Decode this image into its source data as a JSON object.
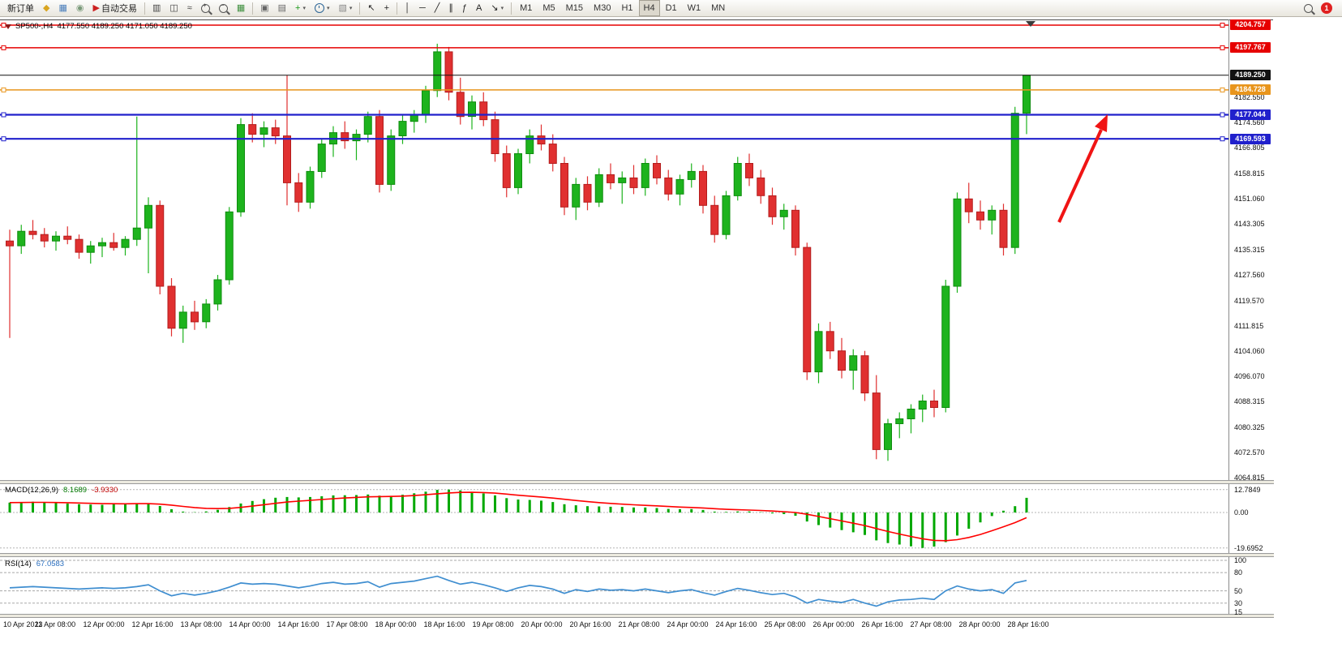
{
  "toolbar": {
    "items": [
      {
        "name": "new-order-button",
        "type": "text",
        "label": "新订单"
      },
      {
        "name": "metaeditor-button",
        "type": "icon",
        "icon": "diamond-icon",
        "glyph": "◆",
        "color": "#d9a520"
      },
      {
        "name": "market-watch-button",
        "type": "icon",
        "icon": "window-grid-icon",
        "glyph": "▦",
        "color": "#4a7ebb"
      },
      {
        "name": "data-window-button",
        "type": "icon",
        "icon": "circle-icon",
        "glyph": "◉",
        "color": "#7a9a7a"
      },
      {
        "name": "autotrading-button",
        "type": "icon-text",
        "icon": "play-icon",
        "glyph": "▶",
        "color": "#cc2020",
        "label": "自动交易"
      },
      {
        "type": "sep"
      },
      {
        "name": "chart-bars-button",
        "type": "icon",
        "icon": "bar-chart-icon",
        "glyph": "▥",
        "color": "#444444"
      },
      {
        "name": "chart-candles-button",
        "type": "icon",
        "icon": "candlestick-chart-icon",
        "glyph": "◫",
        "color": "#444444"
      },
      {
        "name": "chart-line-button",
        "type": "icon",
        "icon": "line-chart-icon",
        "glyph": "≈",
        "color": "#444444"
      },
      {
        "name": "zoom-in-button",
        "type": "lens-plus",
        "icon": "zoom-in-icon"
      },
      {
        "name": "zoom-out-button",
        "type": "lens-minus",
        "icon": "zoom-out-icon"
      },
      {
        "name": "tile-windows-button",
        "type": "icon",
        "icon": "tile-grid-icon",
        "glyph": "▦",
        "color": "#3d8f3d"
      },
      {
        "type": "sep"
      },
      {
        "name": "auto-scroll-button",
        "type": "icon",
        "icon": "auto-scroll-icon",
        "glyph": "▣",
        "color": "#666666"
      },
      {
        "name": "chart-shift-button",
        "type": "icon",
        "icon": "chart-shift-icon",
        "glyph": "▤",
        "color": "#666666"
      },
      {
        "name": "indicators-button",
        "type": "icon",
        "icon": "indicators-plus-icon",
        "glyph": "+",
        "color": "#189918",
        "caret": true
      },
      {
        "name": "periods-button",
        "type": "clock",
        "icon": "clock-icon",
        "caret": true
      },
      {
        "name": "templates-button",
        "type": "icon",
        "icon": "template-icon",
        "glyph": "▧",
        "color": "#888888",
        "caret": true
      },
      {
        "type": "sep"
      },
      {
        "name": "cursor-button",
        "type": "icon",
        "icon": "cursor-icon",
        "glyph": "↖",
        "color": "#222222"
      },
      {
        "name": "crosshair-button",
        "type": "icon",
        "icon": "crosshair-icon",
        "glyph": "+",
        "color": "#222222"
      },
      {
        "type": "sep"
      },
      {
        "name": "vertical-line-button",
        "type": "icon",
        "icon": "vertical-line-icon",
        "glyph": "│",
        "color": "#222222"
      },
      {
        "name": "horizontal-line-button",
        "type": "icon",
        "icon": "horizontal-line-icon",
        "glyph": "─",
        "color": "#222222"
      },
      {
        "name": "trendline-button",
        "type": "icon",
        "icon": "trendline-icon",
        "glyph": "╱",
        "color": "#222222"
      },
      {
        "name": "channel-button",
        "type": "icon",
        "icon": "channel-icon",
        "glyph": "∥",
        "color": "#222222"
      },
      {
        "name": "fibonacci-button",
        "type": "icon",
        "icon": "fibonacci-icon",
        "glyph": "ƒ",
        "color": "#222222"
      },
      {
        "name": "text-tool-button",
        "type": "icon",
        "icon": "text-icon",
        "glyph": "A",
        "color": "#222222"
      },
      {
        "name": "arrows-tool-button",
        "type": "icon",
        "icon": "arrow-tool-icon",
        "glyph": "↘",
        "color": "#222222",
        "caret": true
      },
      {
        "type": "sep"
      },
      {
        "name": "timeframe-m1-button",
        "type": "tf",
        "label": "M1"
      },
      {
        "name": "timeframe-m5-button",
        "type": "tf",
        "label": "M5"
      },
      {
        "name": "timeframe-m15-button",
        "type": "tf",
        "label": "M15"
      },
      {
        "name": "timeframe-m30-button",
        "type": "tf",
        "label": "M30"
      },
      {
        "name": "timeframe-h1-button",
        "type": "tf",
        "label": "H1"
      },
      {
        "name": "timeframe-h4-button",
        "type": "tf",
        "label": "H4",
        "active": true
      },
      {
        "name": "timeframe-d1-button",
        "type": "tf",
        "label": "D1"
      },
      {
        "name": "timeframe-w1-button",
        "type": "tf",
        "label": "W1"
      },
      {
        "name": "timeframe-mn-button",
        "type": "tf",
        "label": "MN"
      },
      {
        "type": "spacer"
      },
      {
        "name": "search-button",
        "type": "lens",
        "icon": "magnifier-icon"
      },
      {
        "name": "notification-badge",
        "type": "badge",
        "label": "1",
        "color": "#e02020"
      }
    ]
  },
  "chart_header": {
    "symbol": "SP500-,H4",
    "quote": "4177.550 4189.250 4171.050 4189.250"
  },
  "chart_data": {
    "type": "candlestick",
    "title": "SP500-,H4",
    "timeframe": "H4",
    "colors": {
      "up": "#1db31d",
      "up_border": "#0e8c0e",
      "down": "#e03030",
      "down_border": "#b31c1c",
      "background": "#ffffff"
    },
    "y_range": [
      4064.06,
      4206.26
    ],
    "y_axis_ticks": [
      "4182.550",
      "4174.560",
      "4166.805",
      "4158.815",
      "4151.060",
      "4143.305",
      "4135.315",
      "4127.560",
      "4119.570",
      "4111.815",
      "4104.060",
      "4096.070",
      "4088.315",
      "4080.325",
      "4072.570",
      "4064.815"
    ],
    "levels": [
      {
        "label": "4204.757",
        "price": 4204.757,
        "color": "#e60000",
        "thickness": 1.5,
        "handles": true
      },
      {
        "label": "4197.767",
        "price": 4197.767,
        "color": "#e60000",
        "thickness": 1.5,
        "handles": true
      },
      {
        "label": "4189.250",
        "price": 4189.25,
        "color": "#111111",
        "thickness": 1,
        "handles": false
      },
      {
        "label": "4184.728",
        "price": 4184.728,
        "color": "#e8951c",
        "thickness": 1.5,
        "handles": true
      },
      {
        "label": "4177.044",
        "price": 4177.044,
        "color": "#2020cc",
        "thickness": 2.2,
        "handles": true
      },
      {
        "label": "4169.593",
        "price": 4169.593,
        "color": "#2020cc",
        "thickness": 2.2,
        "handles": true
      }
    ],
    "x_labels": [
      "10 Apr 2023",
      "11 Apr 08:00",
      "12 Apr 00:00",
      "12 Apr 16:00",
      "13 Apr 08:00",
      "14 Apr 00:00",
      "14 Apr 16:00",
      "17 Apr 08:00",
      "18 Apr 00:00",
      "18 Apr 16:00",
      "19 Apr 08:00",
      "20 Apr 00:00",
      "20 Apr 16:00",
      "21 Apr 08:00",
      "24 Apr 00:00",
      "24 Apr 16:00",
      "25 Apr 08:00",
      "26 Apr 00:00",
      "26 Apr 16:00",
      "27 Apr 08:00",
      "28 Apr 00:00",
      "28 Apr 16:00"
    ],
    "annotation_arrow": {
      "color": "#f01414"
    },
    "ohlc": [
      [
        4138.0,
        4141.5,
        4108.0,
        4136.5
      ],
      [
        4136.5,
        4143.0,
        4134.0,
        4141.0
      ],
      [
        4141.0,
        4144.5,
        4138.5,
        4140.0
      ],
      [
        4140.0,
        4142.0,
        4136.0,
        4138.0
      ],
      [
        4138.0,
        4141.0,
        4135.0,
        4139.5
      ],
      [
        4139.5,
        4142.5,
        4137.0,
        4138.5
      ],
      [
        4138.5,
        4140.0,
        4132.5,
        4134.5
      ],
      [
        4134.5,
        4138.0,
        4131.0,
        4136.5
      ],
      [
        4136.5,
        4139.0,
        4133.0,
        4137.5
      ],
      [
        4137.5,
        4140.5,
        4135.0,
        4136.0
      ],
      [
        4136.0,
        4139.5,
        4133.5,
        4138.5
      ],
      [
        4138.5,
        4176.5,
        4136.5,
        4142.0
      ],
      [
        4142.0,
        4151.5,
        4128.0,
        4149.0
      ],
      [
        4149.0,
        4150.5,
        4121.5,
        4124.0
      ],
      [
        4124.0,
        4126.5,
        4108.5,
        4111.0
      ],
      [
        4111.0,
        4118.0,
        4106.5,
        4116.0
      ],
      [
        4116.0,
        4119.5,
        4110.5,
        4113.0
      ],
      [
        4113.0,
        4120.0,
        4111.0,
        4118.5
      ],
      [
        4118.5,
        4127.5,
        4116.5,
        4126.0
      ],
      [
        4126.0,
        4148.5,
        4124.5,
        4147.0
      ],
      [
        4147.0,
        4176.0,
        4145.5,
        4174.0
      ],
      [
        4174.0,
        4177.5,
        4168.5,
        4171.0
      ],
      [
        4171.0,
        4175.0,
        4167.0,
        4173.0
      ],
      [
        4173.0,
        4175.5,
        4168.0,
        4170.5
      ],
      [
        4170.5,
        4189.3,
        4149.0,
        4156.0
      ],
      [
        4156.0,
        4159.0,
        4147.0,
        4150.0
      ],
      [
        4150.0,
        4161.0,
        4148.0,
        4159.5
      ],
      [
        4159.5,
        4169.5,
        4157.5,
        4168.0
      ],
      [
        4168.0,
        4173.5,
        4164.0,
        4171.5
      ],
      [
        4171.5,
        4175.0,
        4166.5,
        4169.0
      ],
      [
        4169.0,
        4172.5,
        4163.0,
        4171.0
      ],
      [
        4171.0,
        4178.0,
        4168.5,
        4176.5
      ],
      [
        4176.5,
        4178.5,
        4153.0,
        4155.5
      ],
      [
        4155.5,
        4172.5,
        4153.5,
        4170.5
      ],
      [
        4170.5,
        4177.0,
        4168.0,
        4175.0
      ],
      [
        4175.0,
        4178.5,
        4171.5,
        4177.0
      ],
      [
        4177.0,
        4186.0,
        4174.5,
        4184.5
      ],
      [
        4184.5,
        4199.0,
        4182.5,
        4196.5
      ],
      [
        4196.5,
        4198.0,
        4181.5,
        4184.0
      ],
      [
        4184.0,
        4188.5,
        4174.0,
        4176.5
      ],
      [
        4176.5,
        4183.0,
        4172.5,
        4181.0
      ],
      [
        4181.0,
        4184.0,
        4173.5,
        4175.5
      ],
      [
        4175.5,
        4178.0,
        4162.5,
        4165.0
      ],
      [
        4165.0,
        4167.5,
        4151.5,
        4154.5
      ],
      [
        4154.5,
        4166.5,
        4152.5,
        4165.0
      ],
      [
        4165.0,
        4172.5,
        4162.0,
        4170.5
      ],
      [
        4170.5,
        4174.0,
        4166.0,
        4168.0
      ],
      [
        4168.0,
        4171.0,
        4159.5,
        4162.0
      ],
      [
        4162.0,
        4164.0,
        4146.0,
        4148.5
      ],
      [
        4148.5,
        4157.5,
        4144.5,
        4155.5
      ],
      [
        4155.5,
        4158.0,
        4147.5,
        4150.0
      ],
      [
        4150.0,
        4160.5,
        4148.5,
        4158.5
      ],
      [
        4158.5,
        4162.0,
        4154.0,
        4156.0
      ],
      [
        4156.0,
        4159.5,
        4149.5,
        4157.5
      ],
      [
        4157.5,
        4161.5,
        4152.5,
        4154.5
      ],
      [
        4154.5,
        4163.5,
        4152.0,
        4162.0
      ],
      [
        4162.0,
        4164.5,
        4155.5,
        4157.5
      ],
      [
        4157.5,
        4160.0,
        4150.5,
        4152.5
      ],
      [
        4152.5,
        4158.5,
        4149.0,
        4157.0
      ],
      [
        4157.0,
        4162.0,
        4154.5,
        4159.5
      ],
      [
        4159.5,
        4161.5,
        4146.5,
        4149.0
      ],
      [
        4149.0,
        4152.0,
        4137.5,
        4140.0
      ],
      [
        4140.0,
        4153.5,
        4138.5,
        4152.0
      ],
      [
        4152.0,
        4164.0,
        4150.5,
        4162.0
      ],
      [
        4162.0,
        4165.0,
        4155.0,
        4157.5
      ],
      [
        4157.5,
        4160.0,
        4149.5,
        4152.0
      ],
      [
        4152.0,
        4154.5,
        4143.0,
        4145.5
      ],
      [
        4145.5,
        4149.5,
        4141.5,
        4147.5
      ],
      [
        4147.5,
        4149.0,
        4133.5,
        4136.0
      ],
      [
        4136.0,
        4137.5,
        4095.0,
        4097.5
      ],
      [
        4097.5,
        4112.5,
        4094.0,
        4110.0
      ],
      [
        4110.0,
        4113.0,
        4101.5,
        4104.0
      ],
      [
        4104.0,
        4108.0,
        4095.5,
        4098.0
      ],
      [
        4098.0,
        4104.5,
        4092.0,
        4102.5
      ],
      [
        4102.5,
        4104.0,
        4088.5,
        4091.0
      ],
      [
        4091.0,
        4096.5,
        4070.5,
        4073.5
      ],
      [
        4073.5,
        4083.0,
        4070.0,
        4081.5
      ],
      [
        4081.5,
        4085.0,
        4077.0,
        4083.0
      ],
      [
        4083.0,
        4087.5,
        4078.5,
        4086.0
      ],
      [
        4086.0,
        4090.5,
        4082.0,
        4088.5
      ],
      [
        4088.5,
        4092.0,
        4083.5,
        4086.5
      ],
      [
        4086.5,
        4126.0,
        4085.0,
        4124.0
      ],
      [
        4124.0,
        4153.0,
        4122.0,
        4151.0
      ],
      [
        4151.0,
        4156.0,
        4143.5,
        4147.0
      ],
      [
        4147.0,
        4150.5,
        4141.5,
        4144.5
      ],
      [
        4144.5,
        4149.0,
        4140.0,
        4147.5
      ],
      [
        4147.5,
        4149.5,
        4133.5,
        4136.0
      ],
      [
        4136.0,
        4179.5,
        4134.0,
        4177.5
      ],
      [
        4177.55,
        4189.25,
        4171.05,
        4189.25
      ]
    ],
    "macd": {
      "name": "MACD(12,26,9)",
      "value": "8.1689",
      "signal_value": "-3.9330",
      "axis_labels": [
        "12.7849",
        "0.00",
        "-19.6952"
      ],
      "axis_values": [
        12.7849,
        0,
        -19.6952
      ],
      "histogram_color": "#00a800",
      "signal_color": "#ff0000",
      "histogram": [
        5.5,
        5.8,
        6.0,
        5.6,
        5.2,
        5.0,
        4.6,
        4.4,
        4.3,
        4.5,
        4.8,
        5.2,
        5.0,
        3.6,
        1.8,
        0.5,
        0.2,
        0.6,
        1.5,
        3.0,
        5.0,
        6.4,
        7.4,
        8.2,
        8.6,
        8.4,
        8.6,
        9.0,
        9.5,
        9.6,
        9.7,
        10.0,
        9.4,
        9.3,
        9.9,
        10.7,
        11.6,
        12.6,
        12.78,
        12.3,
        11.5,
        10.6,
        9.5,
        8.0,
        7.2,
        7.0,
        6.6,
        5.8,
        4.6,
        4.0,
        3.5,
        3.4,
        3.2,
        3.1,
        2.8,
        2.8,
        2.5,
        2.0,
        1.8,
        1.9,
        1.4,
        0.5,
        0.3,
        0.6,
        0.6,
        0.2,
        -0.5,
        -0.9,
        -1.8,
        -5.0,
        -7.0,
        -8.4,
        -9.8,
        -11.0,
        -12.5,
        -15.5,
        -17.0,
        -17.8,
        -18.8,
        -19.7,
        -19.0,
        -16.5,
        -12.8,
        -9.0,
        -5.5,
        -2.0,
        1.0,
        3.5,
        8.1689
      ]
    },
    "rsi": {
      "name": "RSI(14)",
      "value": "67.0583",
      "axis_labels": [
        "100",
        "80",
        "50",
        "30",
        "15"
      ],
      "axis_values": [
        100,
        80,
        50,
        30,
        15
      ],
      "level_lines": [
        100,
        80,
        50,
        30
      ],
      "line_color": "#3f8ed0",
      "values": [
        55,
        56,
        57,
        56,
        55,
        54,
        53,
        54,
        55,
        54,
        55,
        57,
        60,
        50,
        42,
        46,
        43,
        46,
        50,
        56,
        63,
        61,
        62,
        61,
        58,
        55,
        58,
        62,
        64,
        61,
        62,
        65,
        56,
        62,
        64,
        66,
        70,
        74,
        67,
        61,
        64,
        60,
        55,
        49,
        55,
        59,
        57,
        53,
        46,
        52,
        49,
        53,
        51,
        52,
        50,
        53,
        50,
        47,
        50,
        52,
        47,
        43,
        49,
        54,
        51,
        47,
        44,
        46,
        40,
        30,
        36,
        33,
        31,
        36,
        30,
        25,
        32,
        35,
        36,
        38,
        36,
        50,
        58,
        53,
        50,
        52,
        46,
        63,
        67.06
      ]
    }
  }
}
